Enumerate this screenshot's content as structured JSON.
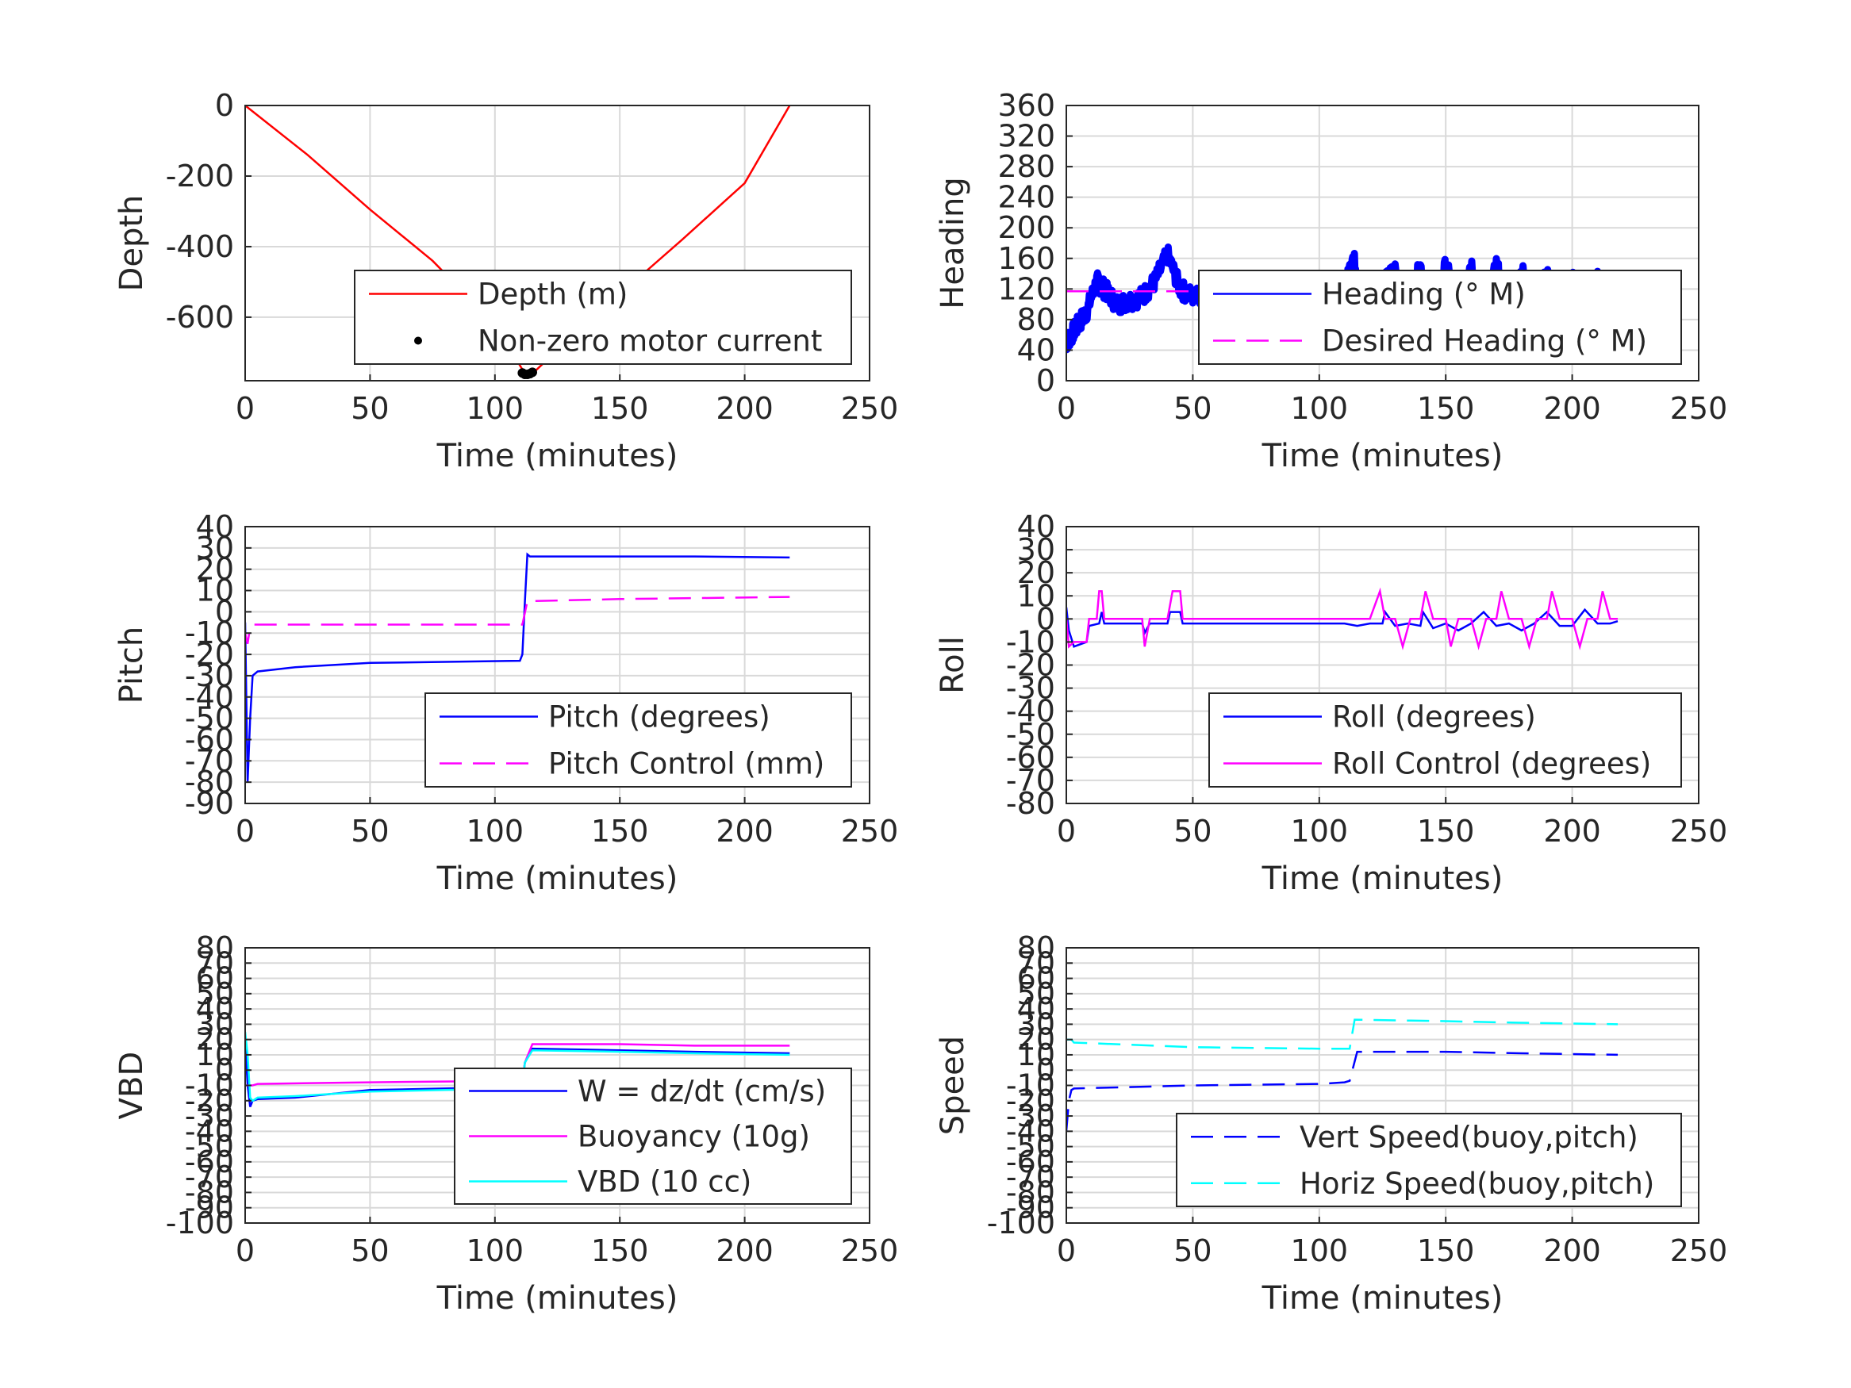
{
  "figure": {
    "background": "#ffffff"
  },
  "chart_data": [
    {
      "type": "line",
      "title": "",
      "xlabel": "Time (minutes)",
      "ylabel": "Depth",
      "xlim": [
        0,
        250
      ],
      "ylim": [
        -780,
        0
      ],
      "xticks": [
        0,
        50,
        100,
        150,
        200,
        250
      ],
      "yticks": [
        -600,
        -400,
        -200,
        0
      ],
      "grid": true,
      "legend_position": "bottom-right",
      "series": [
        {
          "name": "Depth (m)",
          "color": "#ff0000",
          "style": "solid",
          "x": [
            0,
            25,
            50,
            75,
            100,
            112,
            115,
            130,
            150,
            175,
            200,
            218
          ],
          "y": [
            0,
            -140,
            -295,
            -440,
            -620,
            -760,
            -760,
            -660,
            -535,
            -380,
            -220,
            0
          ]
        },
        {
          "name": "Non-zero motor current",
          "color": "#000000",
          "style": "dot",
          "x": [
            111,
            112,
            113,
            114,
            115
          ],
          "y": [
            -758,
            -762,
            -762,
            -760,
            -756
          ]
        }
      ]
    },
    {
      "type": "line",
      "title": "",
      "xlabel": "Time (minutes)",
      "ylabel": "Heading",
      "xlim": [
        0,
        250
      ],
      "ylim": [
        0,
        360
      ],
      "xticks": [
        0,
        50,
        100,
        150,
        200,
        250
      ],
      "yticks": [
        0,
        40,
        80,
        120,
        160,
        200,
        240,
        280,
        320,
        360
      ],
      "grid": true,
      "legend_position": "center-right",
      "series": [
        {
          "name": "Heading (° M)",
          "color": "#0000ff",
          "style": "noisy",
          "x": [
            0,
            2,
            5,
            8,
            12,
            15,
            20,
            25,
            30,
            35,
            40,
            45,
            50,
            60,
            70,
            80,
            90,
            100,
            105,
            110,
            113,
            117,
            120,
            125,
            130,
            135,
            140,
            145,
            150,
            155,
            160,
            165,
            170,
            175,
            180,
            185,
            190,
            195,
            200,
            205,
            210,
            215,
            219
          ],
          "y": [
            50,
            60,
            75,
            90,
            130,
            120,
            100,
            105,
            110,
            130,
            165,
            120,
            110,
            115,
            110,
            112,
            108,
            115,
            112,
            110,
            165,
            120,
            90,
            125,
            145,
            100,
            150,
            95,
            150,
            100,
            155,
            95,
            150,
            95,
            145,
            100,
            140,
            95,
            135,
            100,
            140,
            90,
            125
          ]
        },
        {
          "name": "Desired Heading (° M)",
          "color": "#ff00ff",
          "style": "dashed",
          "x": [
            0,
            219
          ],
          "y": [
            117,
            117
          ]
        }
      ]
    },
    {
      "type": "line",
      "title": "",
      "xlabel": "Time (minutes)",
      "ylabel": "Pitch",
      "xlim": [
        0,
        250
      ],
      "ylim": [
        -90,
        40
      ],
      "xticks": [
        0,
        50,
        100,
        150,
        200,
        250
      ],
      "yticks": [
        -90,
        -80,
        -70,
        -60,
        -50,
        -40,
        -30,
        -20,
        -10,
        0,
        10,
        20,
        30,
        40
      ],
      "grid": true,
      "legend_position": "bottom-right",
      "series": [
        {
          "name": "Pitch (degrees)",
          "color": "#0000ff",
          "style": "solid",
          "x": [
            0,
            1,
            2,
            3,
            5,
            20,
            50,
            80,
            110,
            111,
            112,
            113,
            114,
            150,
            180,
            218
          ],
          "y": [
            -5,
            -80,
            -50,
            -30,
            -28,
            -26,
            -24,
            -23.5,
            -23,
            -20,
            5,
            27,
            26,
            26,
            26,
            25.5
          ]
        },
        {
          "name": "Pitch Control (mm)",
          "color": "#ff00ff",
          "style": "dashed",
          "x": [
            0,
            1,
            2,
            3,
            50,
            110,
            111,
            113,
            150,
            218
          ],
          "y": [
            -10,
            -15,
            -7,
            -6,
            -6,
            -6,
            -6,
            5,
            6,
            7
          ]
        }
      ]
    },
    {
      "type": "line",
      "title": "",
      "xlabel": "Time (minutes)",
      "ylabel": "Roll",
      "xlim": [
        0,
        250
      ],
      "ylim": [
        -80,
        40
      ],
      "xticks": [
        0,
        50,
        100,
        150,
        200,
        250
      ],
      "yticks": [
        -80,
        -70,
        -60,
        -50,
        -40,
        -30,
        -20,
        -10,
        0,
        10,
        20,
        30,
        40
      ],
      "grid": true,
      "legend_position": "bottom-right",
      "series": [
        {
          "name": "Roll (degrees)",
          "color": "#0000ff",
          "style": "solid",
          "x": [
            0,
            1,
            3,
            8,
            9,
            13,
            14,
            15,
            30,
            31,
            33,
            40,
            41,
            45,
            46,
            60,
            80,
            100,
            110,
            115,
            120,
            125,
            126,
            130,
            135,
            140,
            141,
            145,
            150,
            155,
            160,
            165,
            170,
            175,
            180,
            185,
            190,
            195,
            200,
            205,
            210,
            215,
            218
          ],
          "y": [
            5,
            -5,
            -12,
            -10,
            -3,
            -2,
            3,
            -2,
            -2,
            -6,
            -2,
            -2,
            3,
            3,
            -2,
            -2,
            -2,
            -2,
            -2,
            -3,
            -2,
            -2,
            3,
            -3,
            -2,
            -3,
            3,
            -4,
            -2,
            -5,
            -2,
            3,
            -3,
            -2,
            -5,
            -2,
            3,
            -3,
            -3,
            4,
            -2,
            -2,
            -1
          ]
        },
        {
          "name": "Roll Control (degrees)",
          "color": "#ff00ff",
          "style": "solid",
          "x": [
            0,
            1,
            3,
            8,
            9,
            12,
            13,
            14,
            15,
            30,
            31,
            33,
            40,
            42,
            45,
            46,
            60,
            80,
            100,
            110,
            115,
            120,
            124,
            126,
            130,
            133,
            136,
            140,
            142,
            145,
            150,
            152,
            155,
            160,
            163,
            166,
            170,
            172,
            175,
            180,
            183,
            186,
            190,
            192,
            195,
            200,
            203,
            206,
            210,
            212,
            215,
            218
          ],
          "y": [
            0,
            -12,
            -10,
            -10,
            0,
            0,
            12,
            12,
            0,
            0,
            -12,
            0,
            0,
            12,
            12,
            0,
            0,
            0,
            0,
            0,
            0,
            0,
            12,
            0,
            0,
            -12,
            0,
            0,
            12,
            0,
            0,
            -12,
            0,
            0,
            -12,
            0,
            0,
            12,
            0,
            0,
            -12,
            0,
            0,
            12,
            0,
            0,
            -12,
            0,
            0,
            12,
            0,
            0
          ]
        }
      ]
    },
    {
      "type": "line",
      "title": "",
      "xlabel": "Time (minutes)",
      "ylabel": "VBD",
      "xlim": [
        0,
        250
      ],
      "ylim": [
        -100,
        80
      ],
      "xticks": [
        0,
        50,
        100,
        150,
        200,
        250
      ],
      "yticks": [
        -100,
        -90,
        -80,
        -70,
        -60,
        -50,
        -40,
        -30,
        -20,
        -10,
        0,
        10,
        20,
        30,
        40,
        50,
        60,
        70,
        80
      ],
      "grid": true,
      "legend_position": "bottom-right",
      "series": [
        {
          "name": "W = dz/dt (cm/s)",
          "color": "#0000ff",
          "style": "solid",
          "x": [
            0,
            1,
            2,
            3,
            5,
            20,
            50,
            80,
            110,
            111,
            112,
            115,
            150,
            180,
            218
          ],
          "y": [
            20,
            -10,
            -24,
            -20,
            -19,
            -18,
            -13,
            -12,
            -11,
            -8,
            5,
            14,
            13,
            12,
            11
          ]
        },
        {
          "name": "Buoyancy (10g)",
          "color": "#ff00ff",
          "style": "solid",
          "x": [
            0,
            1,
            2,
            3,
            5,
            50,
            110,
            111,
            112,
            115,
            150,
            180,
            218
          ],
          "y": [
            -10,
            -10,
            -10,
            -10,
            -9,
            -8,
            -7,
            -7,
            5,
            17,
            17,
            16,
            16
          ]
        },
        {
          "name": "VBD (10 cc)",
          "color": "#00ffff",
          "style": "solid",
          "x": [
            0,
            1,
            2,
            3,
            5,
            20,
            50,
            80,
            110,
            111,
            112,
            115,
            150,
            180,
            218
          ],
          "y": [
            25,
            10,
            -18,
            -20,
            -18,
            -17,
            -14,
            -13,
            -12,
            -9,
            5,
            13,
            12,
            11,
            10
          ]
        }
      ]
    },
    {
      "type": "line",
      "title": "",
      "xlabel": "Time (minutes)",
      "ylabel": "Speed",
      "xlim": [
        0,
        250
      ],
      "ylim": [
        -100,
        80
      ],
      "xticks": [
        0,
        50,
        100,
        150,
        200,
        250
      ],
      "yticks": [
        -100,
        -90,
        -80,
        -70,
        -60,
        -50,
        -40,
        -30,
        -20,
        -10,
        0,
        10,
        20,
        30,
        40,
        50,
        60,
        70,
        80
      ],
      "grid": true,
      "legend_position": "bottom-right",
      "series": [
        {
          "name": "Vert Speed(buoy,pitch)",
          "color": "#0000ff",
          "style": "dashed",
          "x": [
            0,
            1,
            2,
            3,
            50,
            100,
            110,
            112,
            115,
            150,
            180,
            218
          ],
          "y": [
            -40,
            -20,
            -13,
            -12,
            -10,
            -9,
            -8,
            -7,
            12,
            12,
            11,
            10
          ]
        },
        {
          "name": "Horiz Speed(buoy,pitch)",
          "color": "#00ffff",
          "style": "dashed",
          "x": [
            0,
            1,
            2,
            3,
            50,
            100,
            110,
            112,
            114,
            150,
            180,
            218
          ],
          "y": [
            20,
            20,
            20,
            18,
            15,
            14,
            14,
            14,
            33,
            32,
            31,
            30
          ]
        }
      ]
    }
  ]
}
